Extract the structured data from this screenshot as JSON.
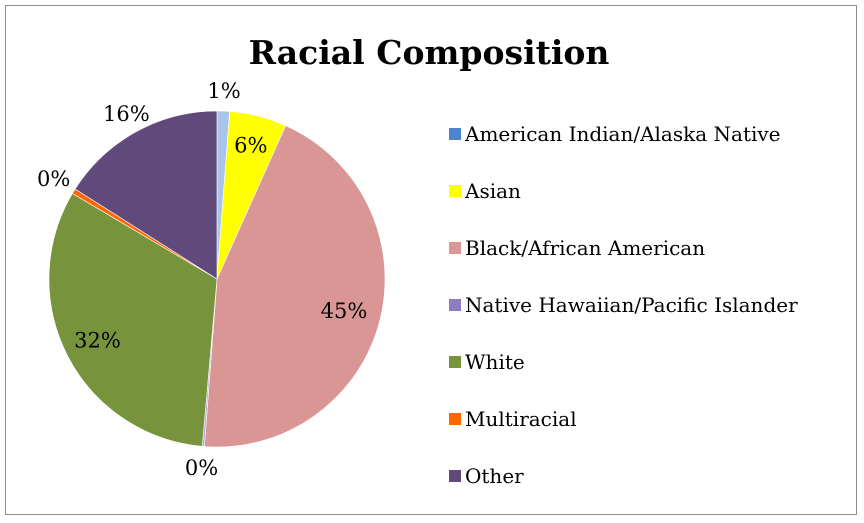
{
  "chart_data": {
    "type": "pie",
    "title": "Racial Composition",
    "legend_position": "right",
    "slices": [
      {
        "name": "American Indian/Alaska Native",
        "label": "1%",
        "value": 1.2,
        "color": "#a9c4ea",
        "legend_color": "#4a86d0"
      },
      {
        "name": "Asian",
        "label": "6%",
        "value": 5.5,
        "color": "#ffff00",
        "legend_color": "#ffff00"
      },
      {
        "name": "Black/African American",
        "label": "45%",
        "value": 44.5,
        "color": "#d99694",
        "legend_color": "#d99694"
      },
      {
        "name": "Native Hawaiian/Pacific Islander",
        "label": "0%",
        "value": 0.2,
        "color": "#b4a7d6",
        "legend_color": "#8e7cc3"
      },
      {
        "name": "White",
        "label": "32%",
        "value": 32.1,
        "color": "#77933c",
        "legend_color": "#77933c"
      },
      {
        "name": "Multiracial",
        "label": "0%",
        "value": 0.5,
        "color": "#ff6600",
        "legend_color": "#ff6600"
      },
      {
        "name": "Other",
        "label": "16%",
        "value": 16.0,
        "color": "#604a7b",
        "legend_color": "#604a7b"
      }
    ]
  }
}
